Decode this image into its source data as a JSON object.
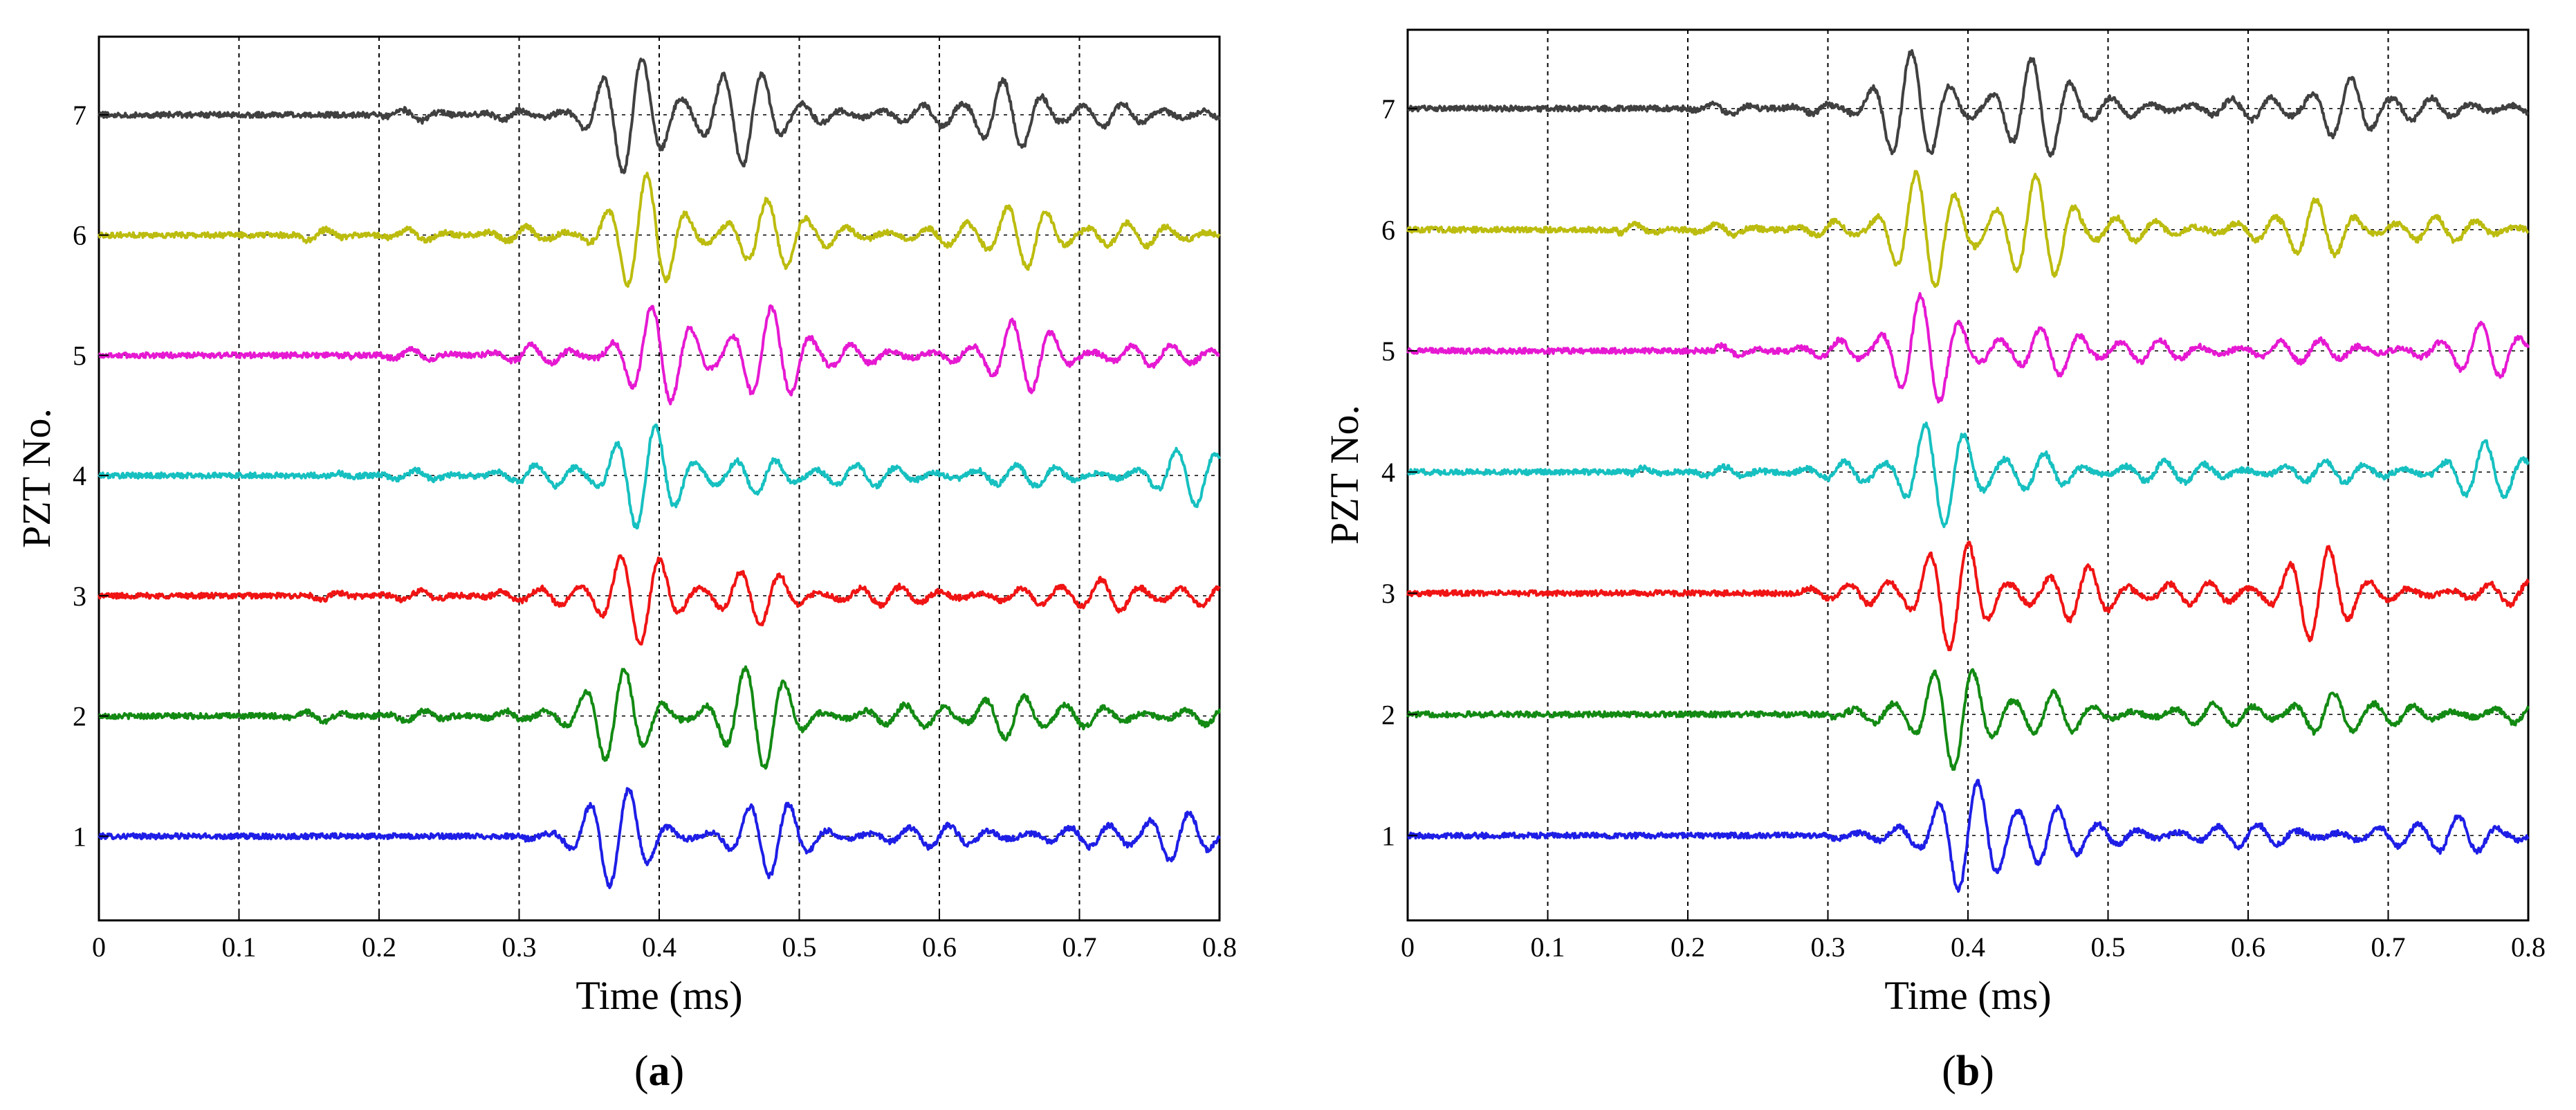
{
  "figure": {
    "panels": [
      {
        "caption_open": "(",
        "caption_letter": "a",
        "caption_close": ")"
      },
      {
        "caption_open": "(",
        "caption_letter": "b",
        "caption_close": ")"
      }
    ]
  },
  "chart_data": [
    {
      "type": "line",
      "panel": "a",
      "xlabel": "Time (ms)",
      "ylabel": "PZT No.",
      "xlim": [
        0,
        0.8
      ],
      "ylim": [
        0.3,
        7.65
      ],
      "xticks": [
        "0",
        "0.1",
        "0.2",
        "0.3",
        "0.4",
        "0.5",
        "0.6",
        "0.7",
        "0.8"
      ],
      "yticks": [
        "1",
        "2",
        "3",
        "4",
        "5",
        "6",
        "7"
      ],
      "vertical_grid": "dotted, every 0.1 ms",
      "series": [
        {
          "offset": 1,
          "color": "#1e1ee6",
          "onset_ms": 0.3,
          "max_amplitude": 0.47,
          "packets": [
            {
              "t": 0.37,
              "a": 0.9
            },
            {
              "t": 0.48,
              "a": 0.7
            },
            {
              "t": 0.77,
              "a": 0.45
            }
          ]
        },
        {
          "offset": 2,
          "color": "#138a13",
          "onset_ms": 0.12,
          "max_amplitude": 0.47,
          "packets": [
            {
              "t": 0.37,
              "a": 0.85
            },
            {
              "t": 0.47,
              "a": 0.95
            },
            {
              "t": 0.65,
              "a": 0.4
            }
          ]
        },
        {
          "offset": 3,
          "color": "#f01414",
          "onset_ms": 0.15,
          "max_amplitude": 0.4,
          "packets": [
            {
              "t": 0.385,
              "a": 1.0
            },
            {
              "t": 0.47,
              "a": 0.6
            },
            {
              "t": 0.72,
              "a": 0.35
            }
          ]
        },
        {
          "offset": 4,
          "color": "#17c0c0",
          "onset_ms": 0.17,
          "max_amplitude": 0.45,
          "packets": [
            {
              "t": 0.39,
              "a": 1.0
            },
            {
              "t": 0.47,
              "a": 0.35
            },
            {
              "t": 0.78,
              "a": 0.55
            }
          ]
        },
        {
          "offset": 5,
          "color": "#e619d2",
          "onset_ms": 0.18,
          "max_amplitude": 0.47,
          "packets": [
            {
              "t": 0.4,
              "a": 0.9
            },
            {
              "t": 0.48,
              "a": 0.85
            },
            {
              "t": 0.66,
              "a": 0.65
            }
          ]
        },
        {
          "offset": 6,
          "color": "#bcbc0f",
          "onset_ms": 0.14,
          "max_amplitude": 0.5,
          "packets": [
            {
              "t": 0.39,
              "a": 1.0
            },
            {
              "t": 0.48,
              "a": 0.6
            },
            {
              "t": 0.66,
              "a": 0.55
            }
          ]
        },
        {
          "offset": 7,
          "color": "#404040",
          "onset_ms": 0.2,
          "max_amplitude": 0.5,
          "packets": [
            {
              "t": 0.38,
              "a": 1.0
            },
            {
              "t": 0.46,
              "a": 0.85
            },
            {
              "t": 0.65,
              "a": 0.6
            }
          ]
        }
      ]
    },
    {
      "type": "line",
      "panel": "b",
      "xlabel": "Time (ms)",
      "ylabel": "PZT No.",
      "xlim": [
        0,
        0.8
      ],
      "ylim": [
        0.3,
        7.65
      ],
      "xticks": [
        "0",
        "0.1",
        "0.2",
        "0.3",
        "0.4",
        "0.5",
        "0.6",
        "0.7",
        "0.8"
      ],
      "yticks": [
        "1",
        "2",
        "3",
        "4",
        "5",
        "6",
        "7"
      ],
      "vertical_grid": "dotted, every 0.1 ms",
      "series": [
        {
          "offset": 1,
          "color": "#1e1ee6",
          "onset_ms": 0.3,
          "max_amplitude": 0.47,
          "packets": [
            {
              "t": 0.4,
              "a": 1.0
            },
            {
              "t": 0.46,
              "a": 0.5
            },
            {
              "t": 0.75,
              "a": 0.35
            }
          ]
        },
        {
          "offset": 2,
          "color": "#138a13",
          "onset_ms": 0.3,
          "max_amplitude": 0.45,
          "packets": [
            {
              "t": 0.39,
              "a": 1.0
            },
            {
              "t": 0.46,
              "a": 0.4
            },
            {
              "t": 0.66,
              "a": 0.4
            }
          ]
        },
        {
          "offset": 3,
          "color": "#f01414",
          "onset_ms": 0.28,
          "max_amplitude": 0.47,
          "packets": [
            {
              "t": 0.39,
              "a": 1.0
            },
            {
              "t": 0.48,
              "a": 0.5
            },
            {
              "t": 0.65,
              "a": 0.85
            }
          ]
        },
        {
          "offset": 4,
          "color": "#17c0c0",
          "onset_ms": 0.16,
          "max_amplitude": 0.45,
          "packets": [
            {
              "t": 0.38,
              "a": 1.0
            },
            {
              "t": 0.45,
              "a": 0.35
            },
            {
              "t": 0.77,
              "a": 0.55
            }
          ]
        },
        {
          "offset": 5,
          "color": "#e619d2",
          "onset_ms": 0.22,
          "max_amplitude": 0.47,
          "packets": [
            {
              "t": 0.37,
              "a": 1.0
            },
            {
              "t": 0.46,
              "a": 0.45
            },
            {
              "t": 0.77,
              "a": 0.5
            }
          ]
        },
        {
          "offset": 6,
          "color": "#bcbc0f",
          "onset_ms": 0.15,
          "max_amplitude": 0.5,
          "packets": [
            {
              "t": 0.37,
              "a": 1.0
            },
            {
              "t": 0.45,
              "a": 0.9
            },
            {
              "t": 0.65,
              "a": 0.5
            }
          ]
        },
        {
          "offset": 7,
          "color": "#404040",
          "onset_ms": 0.2,
          "max_amplitude": 0.47,
          "packets": [
            {
              "t": 0.36,
              "a": 1.0
            },
            {
              "t": 0.45,
              "a": 0.9
            },
            {
              "t": 0.67,
              "a": 0.55
            }
          ]
        }
      ]
    }
  ]
}
